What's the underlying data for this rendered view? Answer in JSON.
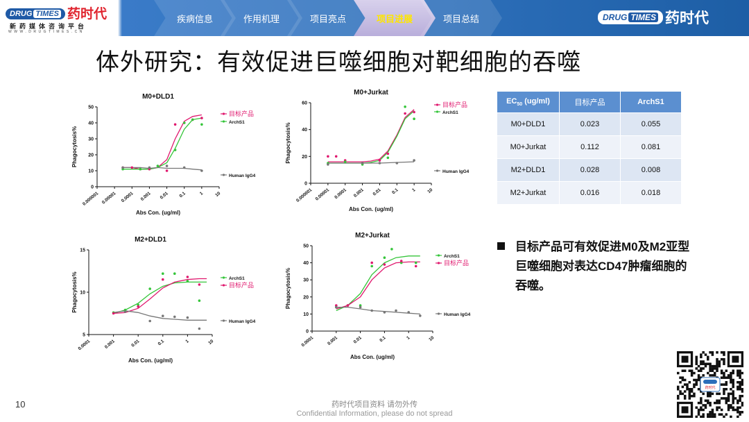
{
  "brand": {
    "badge_left": "DRUG",
    "badge_right": "TIMES",
    "name_cn": "药时代",
    "tagline": "新药媒体咨询平台",
    "url": "WWW.DRUGTIMES.CN"
  },
  "nav": {
    "tabs": [
      {
        "label": "疾病信息",
        "active": false
      },
      {
        "label": "作用机理",
        "active": false
      },
      {
        "label": "项目亮点",
        "active": false
      },
      {
        "label": "项目进展",
        "active": true
      },
      {
        "label": "项目总结",
        "active": false
      }
    ]
  },
  "title": "体外研究：有效促进巨噬细胞对靶细胞的吞噬",
  "colors": {
    "target": "#e0186e",
    "archs1": "#35c53a",
    "igg4": "#777777",
    "header": "#2d6fba",
    "table_header": "#5b8fd0"
  },
  "chart_data": [
    {
      "type": "line",
      "title": "M0+DLD1",
      "xlabel": "Abs Con. (ug/ml)",
      "ylabel": "Phagocytosis%",
      "xscale": "log",
      "xlim": [
        1e-06,
        10
      ],
      "ylim": [
        0,
        50
      ],
      "xticks": [
        "0.000001",
        "0.00001",
        "0.0001",
        "0.001",
        "0.01",
        "0.1",
        "1",
        "10"
      ],
      "yticks": [
        "0",
        "10",
        "20",
        "30",
        "40",
        "50"
      ],
      "legend": "top-right + right",
      "series": [
        {
          "name": "目标产品",
          "color_key": "target",
          "x": [
            3e-05,
            0.0001,
            0.0003,
            0.001,
            0.003,
            0.01,
            0.03,
            0.1,
            0.3,
            1
          ],
          "y": [
            12,
            12,
            11,
            11,
            12,
            17,
            30,
            41,
            44,
            45
          ]
        },
        {
          "name": "ArchS1",
          "color_key": "archs1",
          "x": [
            3e-05,
            0.0001,
            0.0003,
            0.001,
            0.003,
            0.01,
            0.03,
            0.1,
            0.3,
            1
          ],
          "y": [
            11,
            11,
            11,
            11,
            12,
            15,
            24,
            36,
            42,
            43
          ]
        },
        {
          "name": "Human IgG4",
          "color_key": "igg4",
          "x": [
            3e-05,
            0.0001,
            0.0003,
            0.001,
            0.003,
            0.01,
            0.03,
            0.1,
            0.3,
            1
          ],
          "y": [
            12,
            12,
            12,
            11.5,
            12,
            11.5,
            11.5,
            11.5,
            11,
            10.5
          ]
        }
      ],
      "points": [
        {
          "series": 0,
          "x": 3e-05,
          "y": 12
        },
        {
          "series": 0,
          "x": 0.0001,
          "y": 12
        },
        {
          "series": 0,
          "x": 0.0003,
          "y": 11
        },
        {
          "series": 0,
          "x": 0.001,
          "y": 11
        },
        {
          "series": 0,
          "x": 0.01,
          "y": 10
        },
        {
          "series": 0,
          "x": 0.03,
          "y": 39
        },
        {
          "series": 0,
          "x": 0.1,
          "y": 40
        },
        {
          "series": 0,
          "x": 0.3,
          "y": 42
        },
        {
          "series": 0,
          "x": 1,
          "y": 43
        },
        {
          "series": 1,
          "x": 3e-05,
          "y": 11
        },
        {
          "series": 1,
          "x": 0.0003,
          "y": 11
        },
        {
          "series": 1,
          "x": 0.003,
          "y": 13
        },
        {
          "series": 1,
          "x": 0.03,
          "y": 23
        },
        {
          "series": 1,
          "x": 0.1,
          "y": 40
        },
        {
          "series": 1,
          "x": 0.3,
          "y": 42
        },
        {
          "series": 1,
          "x": 1,
          "y": 39
        },
        {
          "series": 2,
          "x": 3e-05,
          "y": 12
        },
        {
          "series": 2,
          "x": 0.001,
          "y": 12
        },
        {
          "series": 2,
          "x": 0.01,
          "y": 13
        },
        {
          "series": 2,
          "x": 0.1,
          "y": 12
        },
        {
          "series": 2,
          "x": 1,
          "y": 10
        }
      ]
    },
    {
      "type": "line",
      "title": "M0+Jurkat",
      "xlabel": "Abs Con. (ug/ml)",
      "ylabel": "Phagocytosis%",
      "xscale": "log",
      "xlim": [
        1e-06,
        10
      ],
      "ylim": [
        0,
        60
      ],
      "xticks": [
        "0.000001",
        "0.00001",
        "0.0001",
        "0.001",
        "0.01",
        "0.1",
        "1",
        "10"
      ],
      "yticks": [
        "0",
        "20",
        "40",
        "60"
      ],
      "legend": "top-right + right",
      "series": [
        {
          "name": "目标产品",
          "color_key": "target",
          "x": [
            1e-05,
            0.0001,
            0.001,
            0.003,
            0.01,
            0.03,
            0.1,
            0.3,
            1
          ],
          "y": [
            16,
            16,
            16,
            16.5,
            18,
            24,
            36,
            49,
            55
          ]
        },
        {
          "name": "ArchS1",
          "color_key": "archs1",
          "x": [
            1e-05,
            0.0001,
            0.001,
            0.003,
            0.01,
            0.03,
            0.1,
            0.3,
            1
          ],
          "y": [
            15,
            15,
            15,
            15.5,
            17,
            23,
            35,
            48,
            54
          ]
        },
        {
          "name": "Human IgG4",
          "color_key": "igg4",
          "x": [
            1e-05,
            0.0001,
            0.001,
            0.01,
            0.1,
            1
          ],
          "y": [
            15,
            15,
            15,
            15,
            15.5,
            16
          ]
        }
      ],
      "points": [
        {
          "series": 0,
          "x": 1e-05,
          "y": 20
        },
        {
          "series": 0,
          "x": 3e-05,
          "y": 20
        },
        {
          "series": 0,
          "x": 0.0001,
          "y": 17
        },
        {
          "series": 0,
          "x": 0.001,
          "y": 15
        },
        {
          "series": 0,
          "x": 0.01,
          "y": 17
        },
        {
          "series": 0,
          "x": 0.03,
          "y": 22
        },
        {
          "series": 0,
          "x": 0.3,
          "y": 52
        },
        {
          "series": 0,
          "x": 1,
          "y": 53
        },
        {
          "series": 1,
          "x": 1e-05,
          "y": 15
        },
        {
          "series": 1,
          "x": 0.0001,
          "y": 16
        },
        {
          "series": 1,
          "x": 0.001,
          "y": 14
        },
        {
          "series": 1,
          "x": 0.03,
          "y": 19
        },
        {
          "series": 1,
          "x": 0.3,
          "y": 57
        },
        {
          "series": 1,
          "x": 1,
          "y": 48
        },
        {
          "series": 2,
          "x": 1e-05,
          "y": 14
        },
        {
          "series": 2,
          "x": 0.001,
          "y": 15
        },
        {
          "series": 2,
          "x": 0.01,
          "y": 15
        },
        {
          "series": 2,
          "x": 0.1,
          "y": 15
        },
        {
          "series": 2,
          "x": 1,
          "y": 17
        }
      ]
    },
    {
      "type": "line",
      "title": "M2+DLD1",
      "xlabel": "Abs Con. (ug/ml)",
      "ylabel": "Phagocytosis%",
      "xscale": "log",
      "xlim": [
        0.0001,
        10
      ],
      "ylim": [
        5,
        15
      ],
      "xticks": [
        "0.0001",
        "0.001",
        "0.01",
        "0.1",
        "1",
        "10"
      ],
      "yticks": [
        "5",
        "10",
        "15"
      ],
      "legend": "right",
      "series": [
        {
          "name": "ArchS1",
          "color_key": "archs1",
          "x": [
            0.001,
            0.003,
            0.01,
            0.03,
            0.1,
            0.3,
            1,
            3,
            6
          ],
          "y": [
            7.5,
            7.9,
            8.7,
            9.8,
            10.7,
            11.1,
            11.2,
            11.2,
            11.2
          ]
        },
        {
          "name": "目标产品",
          "color_key": "target",
          "x": [
            0.001,
            0.003,
            0.01,
            0.03,
            0.1,
            0.3,
            1,
            3,
            6
          ],
          "y": [
            7.5,
            7.6,
            8.1,
            9.2,
            10.5,
            11.2,
            11.5,
            11.6,
            11.6
          ]
        },
        {
          "name": "Human IgG4",
          "color_key": "igg4",
          "x": [
            0.001,
            0.003,
            0.01,
            0.03,
            0.1,
            0.3,
            1,
            3,
            6
          ],
          "y": [
            7.6,
            7.8,
            7.6,
            7.2,
            6.9,
            6.8,
            6.7,
            6.7,
            6.7
          ]
        }
      ],
      "points": [
        {
          "series": 0,
          "x": 0.001,
          "y": 7.6
        },
        {
          "series": 0,
          "x": 0.003,
          "y": 7.9
        },
        {
          "series": 0,
          "x": 0.01,
          "y": 8.5
        },
        {
          "series": 0,
          "x": 0.03,
          "y": 10.4
        },
        {
          "series": 0,
          "x": 0.1,
          "y": 12.2
        },
        {
          "series": 0,
          "x": 0.3,
          "y": 12.2
        },
        {
          "series": 0,
          "x": 1,
          "y": 11.3
        },
        {
          "series": 0,
          "x": 3,
          "y": 9.0
        },
        {
          "series": 1,
          "x": 0.001,
          "y": 7.5
        },
        {
          "series": 1,
          "x": 0.01,
          "y": 8.3
        },
        {
          "series": 1,
          "x": 0.1,
          "y": 11.5
        },
        {
          "series": 1,
          "x": 1,
          "y": 11.8
        },
        {
          "series": 1,
          "x": 3,
          "y": 10.9
        },
        {
          "series": 2,
          "x": 0.003,
          "y": 7.7
        },
        {
          "series": 2,
          "x": 0.03,
          "y": 6.6
        },
        {
          "series": 2,
          "x": 0.1,
          "y": 7.2
        },
        {
          "series": 2,
          "x": 0.3,
          "y": 7.1
        },
        {
          "series": 2,
          "x": 1,
          "y": 7.0
        },
        {
          "series": 2,
          "x": 3,
          "y": 5.7
        }
      ]
    },
    {
      "type": "line",
      "title": "M2+Jurkat",
      "xlabel": "Abs Con. (ug/ml)",
      "ylabel": "Phagocytosis%",
      "xscale": "log",
      "xlim": [
        0.0001,
        10
      ],
      "ylim": [
        0,
        50
      ],
      "xticks": [
        "0.0001",
        "0.001",
        "0.01",
        "0.1",
        "1",
        "10"
      ],
      "yticks": [
        "0",
        "10",
        "20",
        "30",
        "40",
        "50"
      ],
      "legend": "top-right + right",
      "series": [
        {
          "name": "ArchS1",
          "color_key": "archs1",
          "x": [
            0.001,
            0.003,
            0.01,
            0.03,
            0.1,
            0.3,
            1,
            3
          ],
          "y": [
            12,
            15,
            22,
            33,
            40,
            43,
            44,
            44
          ]
        },
        {
          "name": "目标产品",
          "color_key": "target",
          "x": [
            0.001,
            0.003,
            0.01,
            0.03,
            0.1,
            0.3,
            1,
            3
          ],
          "y": [
            13,
            15,
            20,
            30,
            37,
            40,
            40.5,
            40.5
          ]
        },
        {
          "name": "Human IgG4",
          "color_key": "igg4",
          "x": [
            0.001,
            0.003,
            0.01,
            0.03,
            0.1,
            0.3,
            1,
            3
          ],
          "y": [
            14,
            14,
            13,
            12,
            11.5,
            11,
            10.5,
            10
          ]
        }
      ],
      "points": [
        {
          "series": 0,
          "x": 0.001,
          "y": 14
        },
        {
          "series": 0,
          "x": 0.003,
          "y": 15
        },
        {
          "series": 0,
          "x": 0.01,
          "y": 15
        },
        {
          "series": 0,
          "x": 0.03,
          "y": 38
        },
        {
          "series": 0,
          "x": 0.1,
          "y": 43
        },
        {
          "series": 0,
          "x": 0.2,
          "y": 48
        },
        {
          "series": 0,
          "x": 0.5,
          "y": 40
        },
        {
          "series": 0,
          "x": 2,
          "y": 40
        },
        {
          "series": 1,
          "x": 0.001,
          "y": 15
        },
        {
          "series": 1,
          "x": 0.003,
          "y": 15
        },
        {
          "series": 1,
          "x": 0.03,
          "y": 40
        },
        {
          "series": 1,
          "x": 0.1,
          "y": 39
        },
        {
          "series": 1,
          "x": 0.5,
          "y": 41
        },
        {
          "series": 1,
          "x": 2,
          "y": 38
        },
        {
          "series": 2,
          "x": 0.001,
          "y": 14
        },
        {
          "series": 2,
          "x": 0.01,
          "y": 14
        },
        {
          "series": 2,
          "x": 0.03,
          "y": 12
        },
        {
          "series": 2,
          "x": 0.1,
          "y": 11
        },
        {
          "series": 2,
          "x": 0.3,
          "y": 12
        },
        {
          "series": 2,
          "x": 1,
          "y": 11
        },
        {
          "series": 2,
          "x": 3,
          "y": 9
        }
      ]
    }
  ],
  "ec50_table": {
    "header_prefix": "EC",
    "header_sub": "50",
    "header_unit": " (ug/ml)",
    "col_target": "目标产品",
    "col_archs1": "ArchS1",
    "rows": [
      {
        "label": "M0+DLD1",
        "target": "0.023",
        "archs1": "0.055"
      },
      {
        "label": "M0+Jurkat",
        "target": "0.112",
        "archs1": "0.081"
      },
      {
        "label": "M2+DLD1",
        "target": "0.028",
        "archs1": "0.008"
      },
      {
        "label": "M2+Jurkat",
        "target": "0.016",
        "archs1": "0.018"
      }
    ]
  },
  "bullet": "目标产品可有效促进M0及M2亚型巨噬细胞对表达CD47肿瘤细胞的吞噬。",
  "page_number": "10",
  "footer_cn": "药时代项目资料 请勿外传",
  "footer_en": "Confidential Information, please do not spread",
  "qr_label": "药时代"
}
